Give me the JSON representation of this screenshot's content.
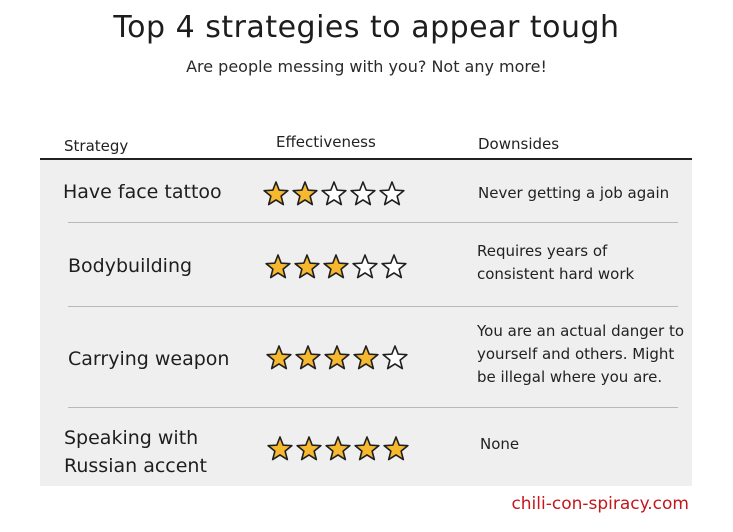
{
  "title": "Top 4 strategies to appear tough",
  "subtitle": "Are people messing with you? Not any more!",
  "headers": {
    "strategy": "Strategy",
    "effectiveness": "Effectiveness",
    "downsides": "Downsides"
  },
  "rows": [
    {
      "strategy_lines": [
        "Have face tattoo"
      ],
      "rating": 2,
      "max_rating": 5,
      "downsides_lines": [
        "Never getting a job again"
      ]
    },
    {
      "strategy_lines": [
        "Bodybuilding"
      ],
      "rating": 3,
      "max_rating": 5,
      "downsides_lines": [
        "Requires years of",
        "consistent hard work"
      ]
    },
    {
      "strategy_lines": [
        "Carrying weapon"
      ],
      "rating": 4,
      "max_rating": 5,
      "downsides_lines": [
        "You are an actual danger to",
        "yourself and others. Might",
        "be illegal where you are."
      ]
    },
    {
      "strategy_lines": [
        "Speaking with",
        "Russian accent"
      ],
      "rating": 5,
      "max_rating": 5,
      "downsides_lines": [
        "None"
      ]
    }
  ],
  "footer": "chili-con-spiracy.com",
  "colors": {
    "star_fill": "#f5b82e",
    "star_outline": "#1f1f1f",
    "table_bg": "#efefef",
    "footer": "#c4161c"
  },
  "icons": {
    "filled_star": "filled-star-icon",
    "empty_star": "empty-star-icon"
  }
}
